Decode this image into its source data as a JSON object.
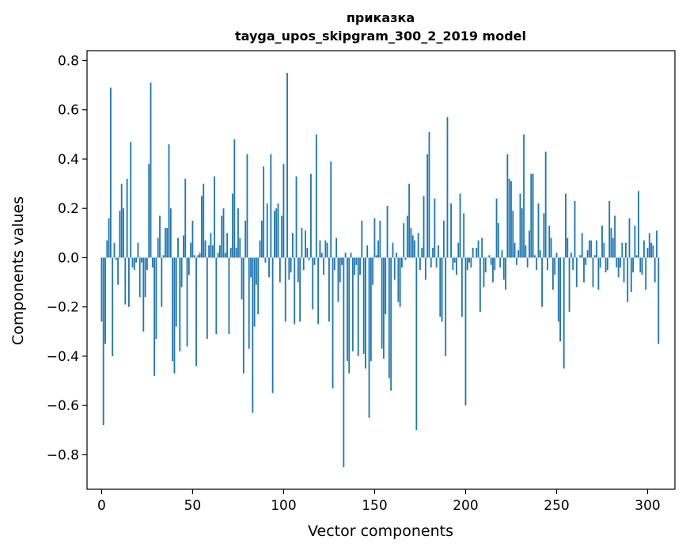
{
  "chart_data": {
    "type": "bar",
    "title_line1": "приказка",
    "title_line2": "tayga_upos_skipgram_300_2_2019 model",
    "xlabel": "Vector components",
    "ylabel": "Components values",
    "xlim": [
      -8,
      315
    ],
    "ylim": [
      -0.94,
      0.84
    ],
    "x_ticks": [
      0,
      50,
      100,
      150,
      200,
      250,
      300
    ],
    "y_ticks": [
      -0.8,
      -0.6,
      -0.4,
      -0.2,
      0.0,
      0.2,
      0.4,
      0.6,
      0.8
    ],
    "bar_color": "#1f77b4",
    "grid": false,
    "values": [
      -0.26,
      -0.68,
      -0.35,
      0.07,
      0.16,
      0.69,
      -0.4,
      0.06,
      -0.01,
      -0.11,
      0.19,
      0.3,
      0.2,
      -0.19,
      0.32,
      -0.2,
      0.47,
      -0.04,
      -0.05,
      -0.02,
      0.06,
      -0.16,
      -0.02,
      -0.3,
      -0.16,
      -0.05,
      0.38,
      0.71,
      -0.04,
      -0.48,
      -0.33,
      0.08,
      0.17,
      -0.2,
      0.01,
      0.12,
      0.12,
      0.46,
      0.2,
      -0.42,
      -0.47,
      -0.28,
      0.08,
      -0.38,
      -0.12,
      0.09,
      0.32,
      -0.36,
      -0.07,
      0.06,
      0.15,
      0.01,
      -0.44,
      0.01,
      0.02,
      0.25,
      0.3,
      0.07,
      -0.33,
      0.05,
      0.1,
      0.05,
      0.33,
      -0.31,
      0.02,
      0.05,
      0.17,
      0.2,
      0.02,
      0.1,
      -0.31,
      0.04,
      0.26,
      0.48,
      0.04,
      0.2,
      0.08,
      -0.17,
      -0.47,
      0.15,
      0.42,
      -0.37,
      -0.08,
      -0.63,
      -0.28,
      -0.11,
      -0.23,
      0.07,
      0.15,
      0.37,
      -0.02,
      0.22,
      -0.08,
      0.42,
      -0.55,
      0.19,
      0.2,
      0.22,
      -0.1,
      0.17,
      0.38,
      -0.26,
      0.75,
      -0.09,
      -0.06,
      0.1,
      -0.27,
      0.33,
      -0.1,
      -0.26,
      0.12,
      -0.05,
      0.11,
      0.04,
      -0.01,
      0.34,
      -0.21,
      -0.03,
      0.5,
      -0.27,
      0.07,
      0.02,
      -0.07,
      0.07,
      0.06,
      -0.26,
      0.39,
      -0.53,
      -0.05,
      0.08,
      -0.18,
      -0.1,
      -0.03,
      -0.85,
      0.02,
      -0.42,
      -0.47,
      0.02,
      -0.38,
      -0.07,
      -0.03,
      -0.4,
      -0.07,
      0.15,
      -0.39,
      -0.45,
      0.05,
      -0.65,
      -0.42,
      -0.11,
      0.16,
      0.01,
      0.07,
      0.15,
      -0.37,
      -0.41,
      -0.23,
      0.21,
      -0.49,
      -0.54,
      0.06,
      -0.09,
      0.02,
      -0.18,
      -0.2,
      -0.04,
      0.14,
      -0.01,
      0.17,
      0.3,
      0.12,
      0.09,
      0.07,
      -0.7,
      0.1,
      -0.05,
      0.04,
      0.25,
      -0.09,
      0.42,
      0.51,
      -0.04,
      0.04,
      0.24,
      -0.04,
      0.05,
      -0.24,
      -0.26,
      0.15,
      -0.4,
      0.57,
      0.0,
      0.22,
      -0.05,
      -0.02,
      -0.07,
      0.06,
      0.26,
      -0.24,
      0.18,
      -0.6,
      -0.05,
      -0.02,
      -0.04,
      0.04,
      0.0,
      0.04,
      0.07,
      -0.22,
      0.08,
      -0.12,
      -0.06,
      0.0,
      0.01,
      -0.03,
      -0.1,
      -0.05,
      0.24,
      0.14,
      -0.04,
      0.03,
      -0.09,
      -0.13,
      0.42,
      0.32,
      0.31,
      0.19,
      0.06,
      -0.03,
      0.03,
      0.26,
      0.2,
      0.5,
      0.05,
      -0.04,
      0.11,
      0.34,
      0.34,
      0.01,
      -0.05,
      0.22,
      0.03,
      -0.2,
      0.18,
      0.43,
      -0.05,
      0.13,
      0.08,
      -0.13,
      -0.07,
      0.02,
      -0.26,
      -0.34,
      0.0,
      -0.45,
      0.26,
      0.08,
      -0.22,
      0.02,
      -0.05,
      0.23,
      -0.12,
      0.0,
      0.01,
      0.1,
      -0.1,
      -0.03,
      0.03,
      0.07,
      0.07,
      -0.12,
      0.01,
      0.07,
      -0.13,
      -0.04,
      0.13,
      0.06,
      -0.06,
      -0.05,
      0.23,
      0.12,
      0.08,
      0.17,
      -0.04,
      -0.08,
      -0.04,
      0.06,
      -0.1,
      0.06,
      -0.18,
      0.16,
      -0.14,
      -0.06,
      0.13,
      0.01,
      0.27,
      -0.06,
      -0.07,
      0.07,
      -0.13,
      0.04,
      0.1,
      0.06,
      0.05,
      -0.1,
      0.11,
      -0.35
    ]
  }
}
